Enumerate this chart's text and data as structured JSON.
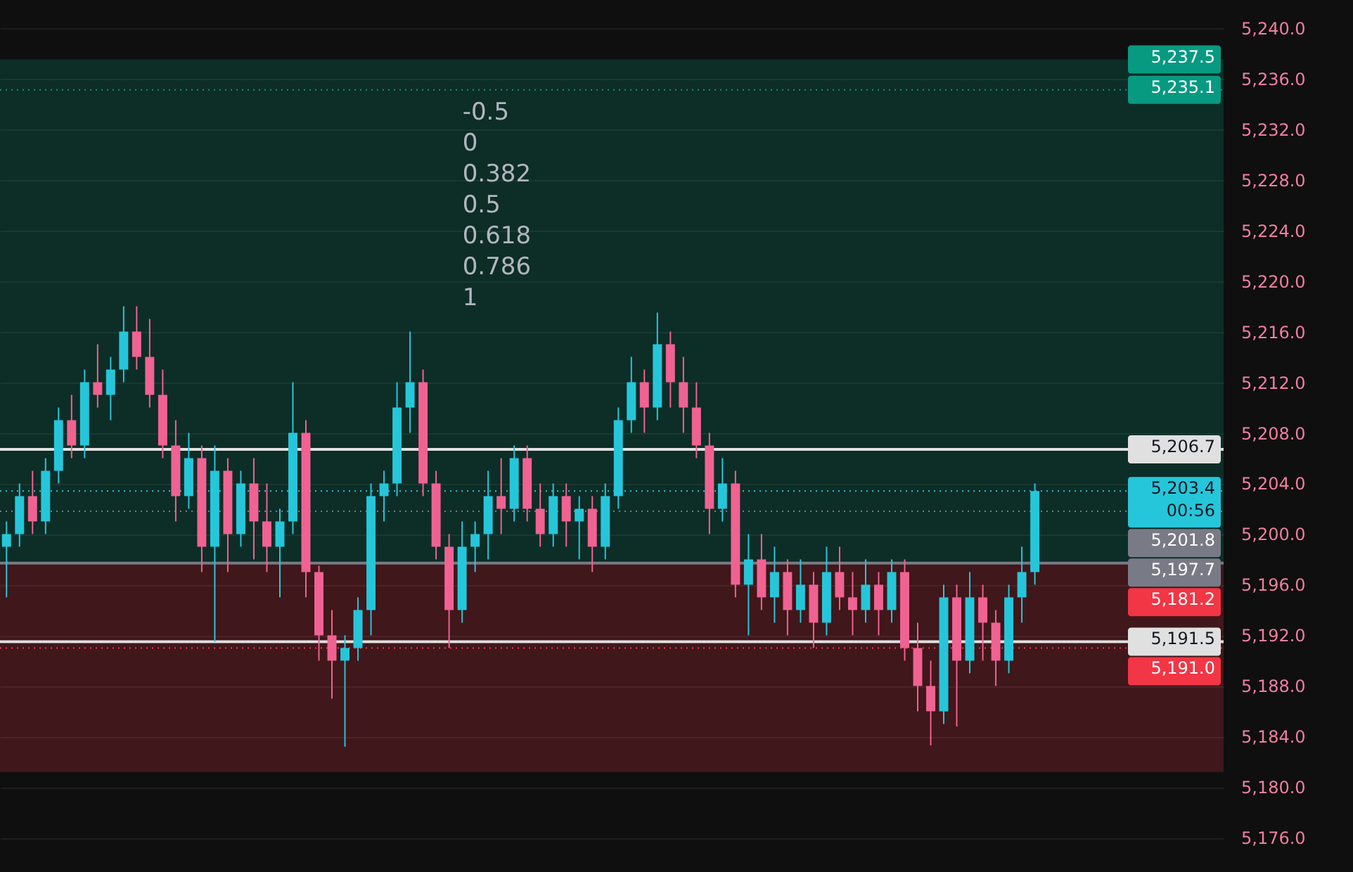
{
  "chart_data": {
    "type": "candlestick",
    "categories": [
      null,
      null,
      null,
      null,
      null,
      null,
      null,
      null,
      null,
      null,
      null,
      null,
      null,
      null,
      null,
      null,
      null,
      null,
      null,
      null,
      null,
      null,
      null,
      null,
      null,
      null,
      null,
      null,
      null,
      null,
      null,
      null,
      null,
      null,
      null,
      null,
      null,
      null,
      null,
      null,
      null,
      null,
      null,
      null,
      null,
      null,
      null,
      null,
      null,
      null,
      null,
      null,
      null,
      null,
      null,
      null,
      null,
      null,
      null,
      null,
      null,
      null,
      null,
      null,
      null,
      null,
      null,
      null,
      null,
      null,
      null,
      null,
      null,
      null,
      null,
      null,
      null,
      null,
      null,
      null,
      null,
      null,
      null,
      null,
      null,
      null,
      null,
      null,
      null,
      null,
      null,
      null,
      null,
      null
    ],
    "ohlc": [
      [
        5199,
        5201,
        5195,
        5200
      ],
      [
        5200,
        5204,
        5199,
        5203
      ],
      [
        5203,
        5205,
        5200,
        5201
      ],
      [
        5201,
        5206,
        5200,
        5205
      ],
      [
        5205,
        5210,
        5204,
        5209
      ],
      [
        5209,
        5211,
        5206,
        5207
      ],
      [
        5207,
        5213,
        5206,
        5212
      ],
      [
        5212,
        5215,
        5210,
        5211
      ],
      [
        5211,
        5214,
        5209,
        5213
      ],
      [
        5213,
        5218,
        5212,
        5216
      ],
      [
        5216,
        5218,
        5213,
        5214
      ],
      [
        5214,
        5217,
        5210,
        5211
      ],
      [
        5211,
        5213,
        5206,
        5207
      ],
      [
        5207,
        5209,
        5201,
        5203
      ],
      [
        5203,
        5208,
        5202,
        5206
      ],
      [
        5206,
        5207,
        5197,
        5199
      ],
      [
        5199,
        5207,
        5191.5,
        5205
      ],
      [
        5205,
        5206,
        5197,
        5200
      ],
      [
        5200,
        5205,
        5199,
        5204
      ],
      [
        5204,
        5206,
        5198,
        5201
      ],
      [
        5201,
        5204,
        5197,
        5199
      ],
      [
        5199,
        5202,
        5195,
        5201
      ],
      [
        5201,
        5212,
        5200,
        5208
      ],
      [
        5208,
        5209,
        5195,
        5197
      ],
      [
        5197,
        5197.5,
        5190,
        5192
      ],
      [
        5192,
        5194,
        5187,
        5190
      ],
      [
        5190,
        5192,
        5183.2,
        5191
      ],
      [
        5191,
        5195,
        5190,
        5194
      ],
      [
        5194,
        5204,
        5192,
        5203
      ],
      [
        5203,
        5205,
        5201,
        5204
      ],
      [
        5204,
        5212,
        5203,
        5210
      ],
      [
        5210,
        5216,
        5208,
        5212
      ],
      [
        5212,
        5213,
        5203,
        5204
      ],
      [
        5204,
        5205,
        5198,
        5199
      ],
      [
        5199,
        5200,
        5191,
        5194
      ],
      [
        5194,
        5201,
        5193,
        5199
      ],
      [
        5199,
        5201,
        5197,
        5200
      ],
      [
        5200,
        5205,
        5198,
        5203
      ],
      [
        5203,
        5206,
        5200,
        5202
      ],
      [
        5202,
        5207,
        5201,
        5206
      ],
      [
        5206,
        5207,
        5201,
        5202
      ],
      [
        5202,
        5204,
        5199,
        5200
      ],
      [
        5200,
        5204,
        5199,
        5203
      ],
      [
        5203,
        5204,
        5199,
        5201
      ],
      [
        5201,
        5203,
        5198,
        5202
      ],
      [
        5202,
        5203,
        5197,
        5199
      ],
      [
        5199,
        5204,
        5198,
        5203
      ],
      [
        5203,
        5210,
        5202,
        5209
      ],
      [
        5209,
        5214,
        5208,
        5212
      ],
      [
        5212,
        5213,
        5208,
        5210
      ],
      [
        5210,
        5217.5,
        5209,
        5215
      ],
      [
        5215,
        5216,
        5210,
        5212
      ],
      [
        5212,
        5214,
        5208,
        5210
      ],
      [
        5210,
        5212,
        5206,
        5207
      ],
      [
        5207,
        5208,
        5200,
        5202
      ],
      [
        5202,
        5206,
        5201,
        5204
      ],
      [
        5204,
        5205,
        5195,
        5196
      ],
      [
        5196,
        5200,
        5192,
        5198
      ],
      [
        5198,
        5200,
        5194,
        5195
      ],
      [
        5195,
        5199,
        5193,
        5197
      ],
      [
        5197,
        5198,
        5192,
        5194
      ],
      [
        5194,
        5198,
        5193,
        5196
      ],
      [
        5196,
        5197,
        5191,
        5193
      ],
      [
        5193,
        5199,
        5192,
        5197
      ],
      [
        5197,
        5199,
        5194,
        5195
      ],
      [
        5195,
        5197,
        5192,
        5194
      ],
      [
        5194,
        5198,
        5193,
        5196
      ],
      [
        5196,
        5197,
        5192,
        5194
      ],
      [
        5194,
        5198,
        5193,
        5197
      ],
      [
        5197,
        5198,
        5190,
        5191
      ],
      [
        5191,
        5193,
        5186,
        5188
      ],
      [
        5188,
        5190,
        5183.3,
        5186
      ],
      [
        5186,
        5196,
        5185,
        5195
      ],
      [
        5195,
        5196,
        5184.8,
        5190
      ],
      [
        5190,
        5197,
        5189,
        5195
      ],
      [
        5195,
        5196,
        5190,
        5193
      ],
      [
        5193,
        5194,
        5188,
        5190
      ],
      [
        5190,
        5196,
        5189,
        5195
      ],
      [
        5195,
        5199,
        5193,
        5197
      ],
      [
        5197,
        5204,
        5196,
        5203.4
      ],
      null,
      null,
      null,
      null,
      null,
      null,
      null,
      null,
      null,
      null,
      null,
      null,
      null,
      null
    ],
    "ylim": [
      5173.3,
      5242.2
    ],
    "yticks": [
      {
        "value": 5176,
        "label": "5,176.0"
      },
      {
        "value": 5180,
        "label": "5,180.0"
      },
      {
        "value": 5184,
        "label": "5,184.0"
      },
      {
        "value": 5188,
        "label": "5,188.0"
      },
      {
        "value": 5192,
        "label": "5,192.0"
      },
      {
        "value": 5196,
        "label": "5,196.0"
      },
      {
        "value": 5200,
        "label": "5,200.0"
      },
      {
        "value": 5204,
        "label": "5,204.0"
      },
      {
        "value": 5208,
        "label": "5,208.0"
      },
      {
        "value": 5212,
        "label": "5,212.0"
      },
      {
        "value": 5216,
        "label": "5,216.0"
      },
      {
        "value": 5220,
        "label": "5,220.0"
      },
      {
        "value": 5224,
        "label": "5,224.0"
      },
      {
        "value": 5228,
        "label": "5,228.0"
      },
      {
        "value": 5232,
        "label": "5,232.0"
      },
      {
        "value": 5236,
        "label": "5,236.0"
      },
      {
        "value": 5240,
        "label": "5,240.0"
      }
    ],
    "grid": "y",
    "tick_labels": "y",
    "bands": [
      {
        "axis": "y",
        "from": 5197.7,
        "to": 5237.5,
        "label": "5,237.5",
        "color": "#089981"
      },
      {
        "axis": "y",
        "from": 5181.2,
        "to": 5197.7,
        "label": "5,181.2",
        "color": "#f23645"
      }
    ],
    "ref_lines": [
      {
        "axis": "y",
        "value": 5235.1,
        "label": "5,235.1",
        "color": "#089981",
        "line_style": "dotted"
      },
      {
        "axis": "y",
        "value": 5206.7,
        "label": "5,206.7",
        "color": "#e0e0e0",
        "line_style": "solid"
      },
      {
        "axis": "y",
        "value": 5203.4,
        "label": "5,203.4\n00:56",
        "color": "#26c6da",
        "line_style": "dotted"
      },
      {
        "axis": "y",
        "value": 5201.8,
        "label": "5,201.8",
        "color": "#787b86",
        "line_style": "dotted"
      },
      {
        "axis": "y",
        "value": 5197.7,
        "label": "5,197.7",
        "color": "#787b86",
        "line_style": "solid"
      },
      {
        "axis": "y",
        "value": 5191.5,
        "label": "5,191.5",
        "color": "#e0e0e0",
        "line_style": "solid"
      },
      {
        "axis": "y",
        "value": 5191.0,
        "label": "5,191.0",
        "color": "#f23645",
        "line_style": "dotted"
      }
    ],
    "annotations": [
      "-0.5",
      "0",
      "0.382",
      "0.5",
      "0.618",
      "0.786",
      "1"
    ]
  }
}
